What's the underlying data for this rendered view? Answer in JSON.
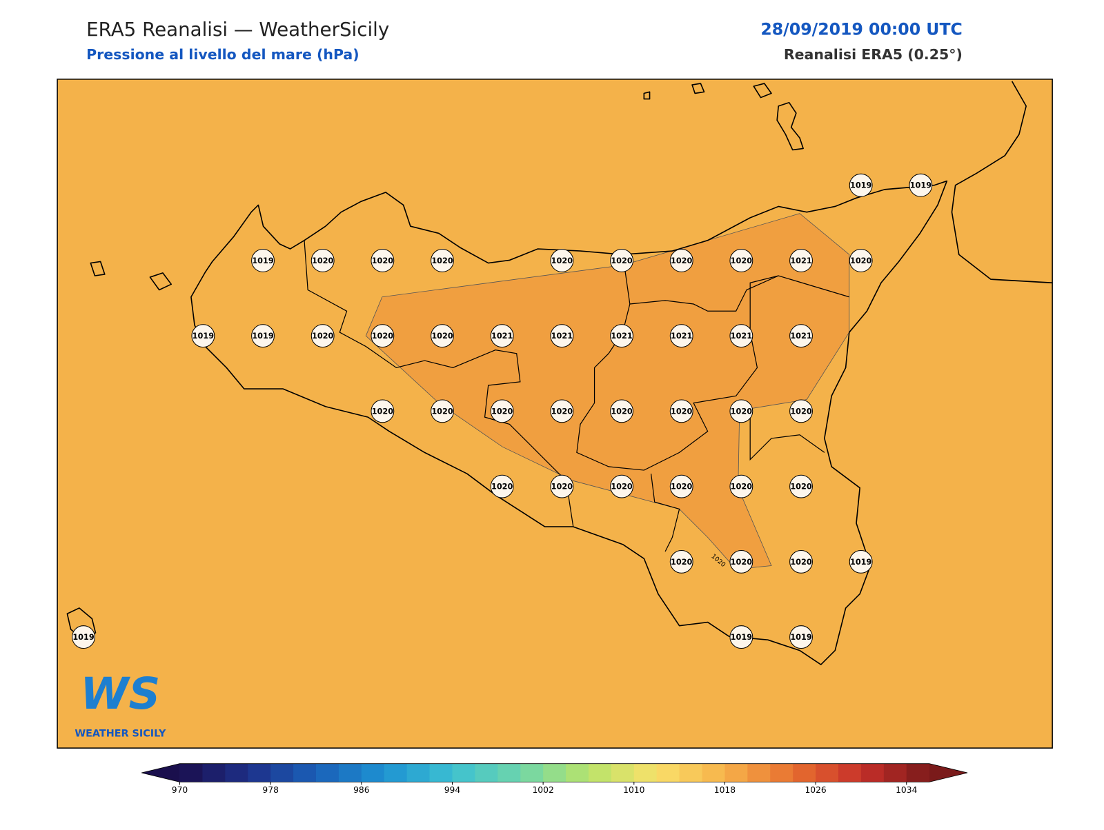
{
  "header": {
    "title": "ERA5 Reanalisi — WeatherSicily",
    "subtitle": "Pressione al livello del mare (hPa)",
    "date": "28/09/2019 00:00 UTC",
    "source": "Reanalisi ERA5 (0.25°)"
  },
  "map": {
    "background_color": "#f4b24a",
    "high_region_color": "#f09f40",
    "contour_label": "1020",
    "stations": [
      1019,
      1019,
      1019,
      1020,
      1020,
      1020,
      1020,
      1020,
      1020,
      1020,
      1021,
      1020,
      1019,
      1019,
      1020,
      1020,
      1020,
      1021,
      1021,
      1021,
      1021,
      1021,
      1021,
      1020,
      1020,
      1020,
      1020,
      1020,
      1020,
      1020,
      1020,
      1020,
      1020,
      1020,
      1020,
      1020,
      1020,
      1020,
      1020,
      1020,
      1019,
      1019,
      1019,
      1019
    ]
  },
  "logo": {
    "mark": "WS",
    "name": "WEATHER SICILY"
  },
  "colorbar": {
    "lim": [
      970,
      1036
    ],
    "step": 2,
    "ticks": [
      970,
      978,
      986,
      994,
      1002,
      1010,
      1018,
      1026,
      1034
    ],
    "colormap": [
      "#1a0f4d",
      "#1e2f88",
      "#1a60b8",
      "#1e92d2",
      "#3cc0d2",
      "#6fd6aa",
      "#b8e36a",
      "#f9e06a",
      "#f6b24a",
      "#e8702f",
      "#c7302a",
      "#7a1a1a"
    ]
  }
}
